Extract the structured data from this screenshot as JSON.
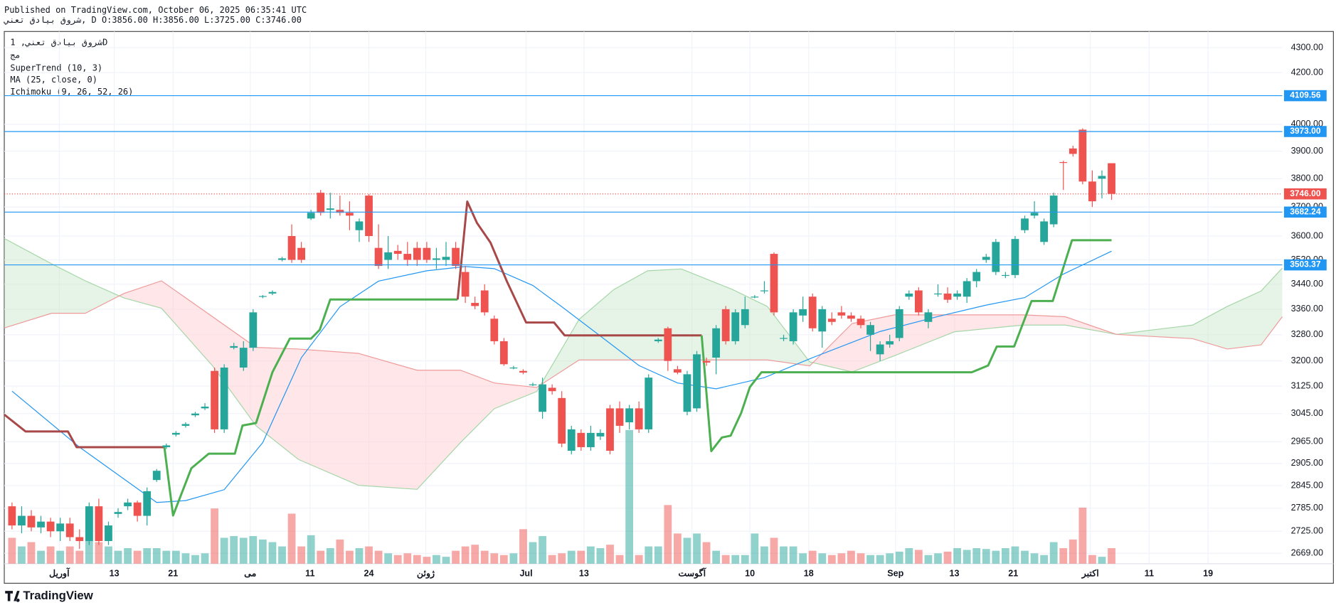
{
  "chart_data": {
    "type": "candlestick",
    "title": "Published on TradingView.com, October 06, 2025 06:35:41 UTC",
    "subtitle": "شروق بيادق تعني, D O:3856.00 H:3856.00 L:3725.00 C:3746.00",
    "legend_lines": [
      "شروق بيادق تعني, 1D",
      "مج"
    ],
    "brand": "TradingView",
    "log_scale": true,
    "grid": true,
    "up_color": "#26a69a",
    "down_color": "#ef5350",
    "xlim": [
      -0.8,
      131.7
    ],
    "ylim": [
      2643,
      4366
    ],
    "xticks": [
      {
        "value": 4.9,
        "label": "آوریل"
      },
      {
        "value": 10.6,
        "label": "13"
      },
      {
        "value": 16.7,
        "label": "21"
      },
      {
        "value": 24.7,
        "label": "می"
      },
      {
        "value": 30.9,
        "label": "11"
      },
      {
        "value": 37.0,
        "label": "24"
      },
      {
        "value": 42.9,
        "label": "ژوئن"
      },
      {
        "value": 53.3,
        "label": "Jul"
      },
      {
        "value": 59.3,
        "label": "13"
      },
      {
        "value": 70.5,
        "label": "آگوست"
      },
      {
        "value": 76.5,
        "label": "10"
      },
      {
        "value": 82.6,
        "label": "18"
      },
      {
        "value": 91.6,
        "label": "Sep"
      },
      {
        "value": 97.7,
        "label": "13"
      },
      {
        "value": 103.8,
        "label": "21"
      },
      {
        "value": 111.8,
        "label": "اکتبر"
      },
      {
        "value": 117.9,
        "label": "11"
      },
      {
        "value": 124.0,
        "label": "19"
      }
    ],
    "yticks": [
      {
        "value": 2669,
        "label": "2669.00"
      },
      {
        "value": 2725,
        "label": "2725.00"
      },
      {
        "value": 2785,
        "label": "2785.00"
      },
      {
        "value": 2845,
        "label": "2845.00"
      },
      {
        "value": 2905,
        "label": "2905.00"
      },
      {
        "value": 2965,
        "label": "2965.00"
      },
      {
        "value": 3045,
        "label": "3045.00"
      },
      {
        "value": 3125,
        "label": "3125.00"
      },
      {
        "value": 3200,
        "label": "3200.00"
      },
      {
        "value": 3280,
        "label": "3280.00"
      },
      {
        "value": 3360,
        "label": "3360.00"
      },
      {
        "value": 3440,
        "label": "3440.00"
      },
      {
        "value": 3520,
        "label": "3520.00"
      },
      {
        "value": 3600,
        "label": "3600.00"
      },
      {
        "value": 3700,
        "label": "3700.00"
      },
      {
        "value": 3800,
        "label": "3800.00"
      },
      {
        "value": 3900,
        "label": "3900.00"
      },
      {
        "value": 4000,
        "label": "4000.00"
      },
      {
        "value": 4200,
        "label": "4200.00"
      },
      {
        "value": 4300,
        "label": "4300.00"
      }
    ],
    "ohlc": [
      [
        2790,
        2800,
        2730,
        2740
      ],
      [
        2740,
        2790,
        2720,
        2765
      ],
      [
        2765,
        2780,
        2725,
        2735
      ],
      [
        2735,
        2765,
        2720,
        2750
      ],
      [
        2750,
        2760,
        2710,
        2725
      ],
      [
        2725,
        2760,
        2700,
        2745
      ],
      [
        2745,
        2760,
        2700,
        2710
      ],
      [
        2710,
        2730,
        2680,
        2700
      ],
      [
        2700,
        2800,
        2690,
        2790
      ],
      [
        2790,
        2810,
        2690,
        2700
      ],
      [
        2700,
        2750,
        2690,
        2740
      ],
      [
        2770,
        2785,
        2760,
        2775
      ],
      [
        2790,
        2810,
        2780,
        2800
      ],
      [
        2800,
        2805,
        2750,
        2765
      ],
      [
        2765,
        2840,
        2740,
        2830
      ],
      [
        2860,
        2890,
        2855,
        2885
      ],
      [
        2950,
        2960,
        2945,
        2955
      ],
      [
        2985,
        2995,
        2980,
        2990
      ],
      [
        3010,
        3020,
        3005,
        3015
      ],
      [
        3040,
        3050,
        3035,
        3045
      ],
      [
        3060,
        3075,
        3055,
        3065
      ],
      [
        3170,
        3180,
        2990,
        3000
      ],
      [
        3000,
        3190,
        2990,
        3180
      ],
      [
        3240,
        3255,
        3235,
        3245
      ],
      [
        3180,
        3260,
        3170,
        3240
      ],
      [
        3240,
        3360,
        3230,
        3350
      ],
      [
        3400,
        3405,
        3395,
        3402
      ],
      [
        3410,
        3420,
        3405,
        3415
      ],
      [
        3520,
        3530,
        3515,
        3525
      ],
      [
        3600,
        3640,
        3510,
        3520
      ],
      [
        3560,
        3580,
        3510,
        3520
      ],
      [
        3660,
        3690,
        3655,
        3680
      ],
      [
        3750,
        3760,
        3670,
        3680
      ],
      [
        3690,
        3750,
        3660,
        3695
      ],
      [
        3690,
        3740,
        3670,
        3680
      ],
      [
        3680,
        3720,
        3620,
        3670
      ],
      [
        3620,
        3660,
        3580,
        3650
      ],
      [
        3740,
        3745,
        3580,
        3600
      ],
      [
        3560,
        3640,
        3490,
        3500
      ],
      [
        3520,
        3600,
        3490,
        3545
      ],
      [
        3550,
        3570,
        3520,
        3540
      ],
      [
        3540,
        3580,
        3500,
        3520
      ],
      [
        3560,
        3580,
        3500,
        3520
      ],
      [
        3560,
        3580,
        3510,
        3520
      ],
      [
        3520,
        3560,
        3490,
        3525
      ],
      [
        3520,
        3580,
        3500,
        3530
      ],
      [
        3560,
        3580,
        3490,
        3500
      ],
      [
        3480,
        3500,
        3380,
        3400
      ],
      [
        3380,
        3400,
        3360,
        3370
      ],
      [
        3420,
        3440,
        3340,
        3350
      ],
      [
        3330,
        3340,
        3250,
        3260
      ],
      [
        3260,
        3270,
        3185,
        3190
      ],
      [
        3180,
        3185,
        3175,
        3180
      ],
      [
        3170,
        3175,
        3160,
        3165
      ],
      [
        3130,
        3135,
        3125,
        3130
      ],
      [
        3050,
        3150,
        3030,
        3130
      ],
      [
        3120,
        3130,
        3100,
        3110
      ],
      [
        3090,
        3110,
        2950,
        2960
      ],
      [
        2940,
        3010,
        2930,
        3000
      ],
      [
        2990,
        3000,
        2940,
        2950
      ],
      [
        2950,
        3010,
        2940,
        2990
      ],
      [
        2980,
        3000,
        2970,
        2990
      ],
      [
        3060,
        3070,
        2930,
        2940
      ],
      [
        3060,
        3080,
        2990,
        3010
      ],
      [
        3020,
        3070,
        3000,
        3060
      ],
      [
        3060,
        3080,
        2990,
        3000
      ],
      [
        3000,
        3160,
        2990,
        3150
      ],
      [
        3260,
        3270,
        3255,
        3265
      ],
      [
        3300,
        3305,
        3170,
        3200
      ],
      [
        3175,
        3185,
        3160,
        3165
      ],
      [
        3050,
        3170,
        3040,
        3160
      ],
      [
        3060,
        3230,
        3050,
        3220
      ],
      [
        3200,
        3210,
        3185,
        3195
      ],
      [
        3210,
        3310,
        3160,
        3300
      ],
      [
        3360,
        3370,
        3250,
        3260
      ],
      [
        3260,
        3360,
        3250,
        3350
      ],
      [
        3310,
        3400,
        3300,
        3360
      ],
      [
        3400,
        3405,
        3395,
        3400
      ],
      [
        3420,
        3450,
        3410,
        3420
      ],
      [
        3540,
        3545,
        3340,
        3350
      ],
      [
        3270,
        3280,
        3260,
        3270
      ],
      [
        3260,
        3360,
        3250,
        3350
      ],
      [
        3340,
        3400,
        3320,
        3360
      ],
      [
        3400,
        3410,
        3290,
        3300
      ],
      [
        3290,
        3370,
        3240,
        3360
      ],
      [
        3330,
        3350,
        3310,
        3320
      ],
      [
        3350,
        3370,
        3330,
        3340
      ],
      [
        3340,
        3350,
        3320,
        3330
      ],
      [
        3330,
        3340,
        3300,
        3310
      ],
      [
        3280,
        3320,
        3230,
        3310
      ],
      [
        3220,
        3260,
        3200,
        3250
      ],
      [
        3250,
        3280,
        3240,
        3260
      ],
      [
        3270,
        3370,
        3260,
        3360
      ],
      [
        3400,
        3420,
        3390,
        3410
      ],
      [
        3420,
        3430,
        3340,
        3350
      ],
      [
        3320,
        3360,
        3300,
        3350
      ],
      [
        3410,
        3440,
        3400,
        3410
      ],
      [
        3410,
        3430,
        3380,
        3390
      ],
      [
        3400,
        3420,
        3390,
        3410
      ],
      [
        3400,
        3460,
        3380,
        3450
      ],
      [
        3450,
        3490,
        3430,
        3480
      ],
      [
        3520,
        3540,
        3510,
        3530
      ],
      [
        3480,
        3590,
        3470,
        3580
      ],
      [
        3470,
        3480,
        3460,
        3470
      ],
      [
        3470,
        3600,
        3460,
        3590
      ],
      [
        3620,
        3670,
        3610,
        3660
      ],
      [
        3670,
        3720,
        3660,
        3680
      ],
      [
        3580,
        3660,
        3570,
        3650
      ],
      [
        3640,
        3750,
        3630,
        3740
      ],
      [
        3860,
        3865,
        3760,
        3858
      ],
      [
        3910,
        3920,
        3880,
        3890
      ],
      [
        3980,
        3985,
        3780,
        3790
      ],
      [
        3790,
        3830,
        3700,
        3720
      ],
      [
        3800,
        3830,
        3730,
        3810
      ],
      [
        3856,
        3856,
        3725,
        3746
      ]
    ],
    "volume": {
      "values": [
        30,
        20,
        25,
        15,
        20,
        15,
        20,
        15,
        62,
        25,
        20,
        15,
        18,
        15,
        18,
        18,
        15,
        15,
        12,
        10,
        12,
        64,
        30,
        32,
        30,
        32,
        28,
        25,
        20,
        58,
        20,
        33,
        15,
        18,
        28,
        15,
        18,
        20,
        15,
        12,
        10,
        12,
        10,
        8,
        10,
        8,
        15,
        20,
        22,
        15,
        12,
        10,
        12,
        40,
        25,
        32,
        10,
        12,
        15,
        15,
        20,
        18,
        22,
        10,
        155,
        10,
        20,
        20,
        68,
        35,
        30,
        35,
        25,
        15,
        10,
        10,
        10,
        35,
        20,
        30,
        20,
        20,
        12,
        15,
        12,
        10,
        12,
        15,
        12,
        10,
        10,
        12,
        14,
        18,
        16,
        10,
        12,
        14,
        18,
        16,
        18,
        17,
        15,
        18,
        20,
        15,
        12,
        10,
        25,
        18,
        28,
        65,
        10,
        8,
        18
      ]
    },
    "ma": {
      "name": "MA (25, close, 0)",
      "color": "#2196f3",
      "x": [
        0,
        7,
        15,
        18,
        22,
        26,
        30,
        34,
        38,
        43,
        47,
        50,
        54,
        57,
        61,
        65,
        69,
        73,
        78,
        83,
        90,
        96,
        101,
        105,
        109,
        114
      ],
      "values": [
        3110,
        2950,
        2800,
        2805,
        2834,
        2963,
        3210,
        3368,
        3450,
        3484,
        3498,
        3491,
        3436,
        3368,
        3276,
        3186,
        3134,
        3117,
        3150,
        3210,
        3290,
        3337,
        3373,
        3397,
        3473,
        3549
      ]
    },
    "supertrend": {
      "name": "SuperTrend (10, 3)",
      "pieces": [
        {
          "color": "#a84848",
          "x": [
            -0.8,
            1.4,
            5.8,
            6.7,
            15.8
          ],
          "values": [
            3042,
            2994,
            2994,
            2950,
            2950
          ]
        },
        {
          "color": "#4caf50",
          "x": [
            15.8,
            16.7,
            18.6,
            20.4,
            23.1,
            23.9,
            25.3,
            27.0,
            28.8,
            31.0,
            31.9,
            33.0,
            46.2
          ],
          "values": [
            2950,
            2766,
            2892,
            2932,
            2932,
            3011,
            3018,
            3166,
            3268,
            3268,
            3295,
            3391,
            3391
          ]
        },
        {
          "color": "#a84848",
          "x": [
            46.2,
            47.2,
            48.2,
            49.6,
            51.3,
            53.3,
            56.2,
            57.3,
            71.5
          ],
          "values": [
            3391,
            3719,
            3645,
            3578,
            3450,
            3318,
            3318,
            3278,
            3278
          ]
        },
        {
          "color": "#4caf50",
          "x": [
            71.5,
            72.5,
            73.6,
            74.5,
            75.6,
            76.5,
            77.7,
            99.5,
            101.2,
            102.1,
            103.9,
            105.7,
            107.9,
            109.9,
            114
          ],
          "values": [
            3278,
            2939,
            2977,
            2982,
            3047,
            3122,
            3166,
            3166,
            3186,
            3244,
            3244,
            3386,
            3386,
            3586,
            3586
          ]
        }
      ]
    },
    "ichimoku": {
      "name": "Ichimoku (9, 26, 52, 26)",
      "x": [
        -0.8,
        4.1,
        7.6,
        11.6,
        15.5,
        20.8,
        25.3,
        29.7,
        35.9,
        42.0,
        46.5,
        50.0,
        54.4,
        58.8,
        62.4,
        65.9,
        69.4,
        74.7,
        78.3,
        82.7,
        87.1,
        91.5,
        97.7,
        104.8,
        109.2,
        114.5,
        118.0,
        122.4,
        126.0,
        129.5,
        131.7
      ],
      "span_a": {
        "color": "#a5d6a7",
        "values": [
          3592,
          3507,
          3451,
          3396,
          3363,
          3185,
          3010,
          2916,
          2846,
          2835,
          2963,
          3059,
          3109,
          3328,
          3423,
          3484,
          3490,
          3423,
          3369,
          3197,
          3167,
          3216,
          3289,
          3310,
          3310,
          3281,
          3294,
          3310,
          3369,
          3418,
          3493
        ]
      },
      "span_b": {
        "color": "#ef9a9a",
        "values": [
          3301,
          3347,
          3347,
          3410,
          3451,
          3336,
          3241,
          3236,
          3223,
          3172,
          3172,
          3134,
          3121,
          3203,
          3203,
          3203,
          3203,
          3203,
          3203,
          3185,
          3315,
          3342,
          3342,
          3342,
          3336,
          3281,
          3275,
          3268,
          3236,
          3249,
          3336
        ]
      },
      "up_fill": "#c8e6c9",
      "down_fill": "#ffcdd2"
    },
    "levels": {
      "color": "#2196f3",
      "values": [
        4109.56,
        3973,
        3682.24,
        3503.37
      ],
      "value_labels": [
        "4109.56",
        "3973.00",
        "3682.24",
        "3503.37"
      ]
    },
    "last": {
      "color": "#ef5350",
      "values": [
        3746
      ],
      "value_labels": [
        "3746.00"
      ]
    }
  }
}
